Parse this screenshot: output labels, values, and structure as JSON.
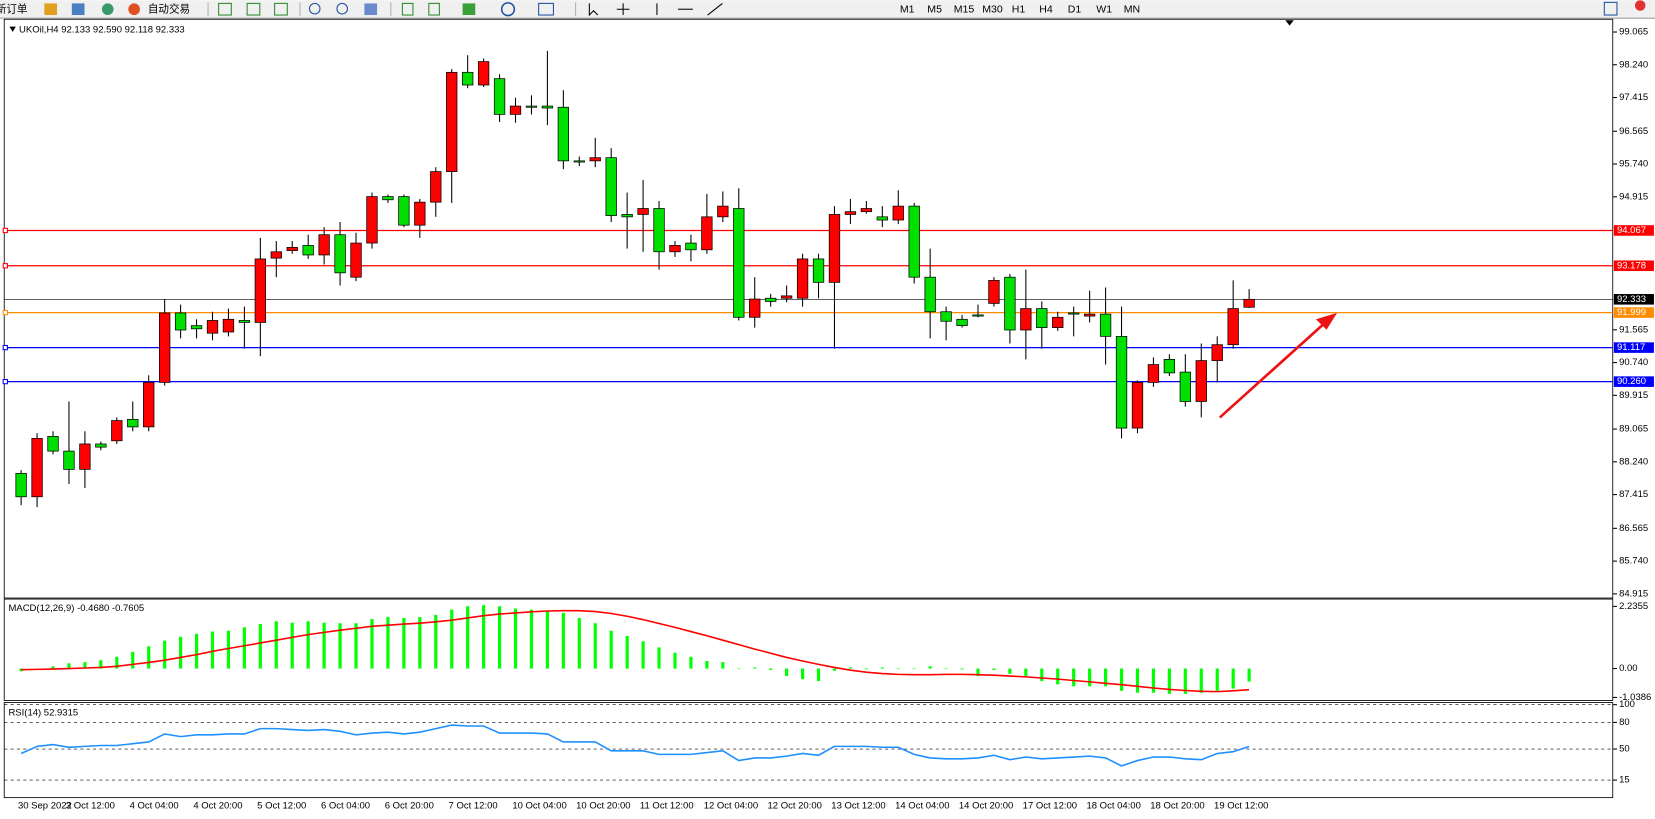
{
  "toolbar": {
    "buttons": [
      "新订单",
      "自动交易"
    ],
    "timeframes": [
      "M1",
      "M5",
      "M15",
      "M30",
      "H1",
      "H4",
      "D1",
      "W1",
      "MN"
    ]
  },
  "chart_data": [
    {
      "type": "candlestick",
      "title": "UKOil,H4  92.133 92.590 92.118 92.333",
      "categories": [
        "30 Sep 2022",
        null,
        null,
        "3 Oct 12:00",
        null,
        null,
        null,
        "4 Oct 04:00",
        null,
        null,
        null,
        "4 Oct 20:00",
        null,
        null,
        null,
        "5 Oct 12:00",
        null,
        null,
        null,
        "6 Oct 04:00",
        null,
        null,
        null,
        "6 Oct 20:00",
        null,
        null,
        null,
        "7 Oct 12:00",
        null,
        null,
        null,
        "10 Oct 04:00",
        null,
        null,
        null,
        "10 Oct 20:00",
        null,
        null,
        null,
        "11 Oct 12:00",
        null,
        null,
        null,
        "12 Oct 04:00",
        null,
        null,
        null,
        "12 Oct 20:00",
        null,
        null,
        null,
        "13 Oct 12:00",
        null,
        null,
        null,
        "14 Oct 04:00",
        null,
        null,
        null,
        "14 Oct 20:00",
        null,
        null,
        null,
        "17 Oct 12:00",
        null,
        null,
        null,
        "18 Oct 04:00",
        null,
        null,
        null,
        "18 Oct 20:00",
        null,
        null,
        null,
        "19 Oct 12:00",
        null,
        null
      ],
      "open": [
        87.95,
        87.36,
        88.88,
        88.51,
        88.05,
        88.69,
        88.77,
        89.31,
        89.12,
        90.24,
        91.99,
        91.67,
        91.48,
        91.51,
        91.8,
        91.75,
        93.37,
        93.56,
        93.69,
        93.45,
        93.96,
        92.89,
        93.75,
        94.92,
        94.92,
        94.2,
        94.78,
        95.55,
        98.05,
        97.73,
        97.89,
        96.99,
        97.2,
        97.2,
        97.17,
        95.82,
        95.82,
        95.9,
        94.47,
        94.47,
        94.62,
        93.53,
        93.75,
        93.58,
        94.41,
        94.62,
        91.88,
        92.36,
        92.36,
        92.36,
        93.35,
        92.76,
        94.47,
        94.54,
        94.41,
        94.33,
        94.68,
        92.89,
        92.02,
        91.83,
        91.94,
        92.23,
        92.89,
        91.56,
        92.1,
        91.62,
        91.99,
        91.91,
        91.96,
        91.4,
        89.09,
        90.24,
        90.82,
        90.5,
        89.76,
        90.79,
        91.19,
        92.133
      ],
      "high": [
        88.03,
        88.96,
        89.01,
        89.76,
        89.01,
        88.75,
        89.36,
        89.76,
        90.42,
        92.34,
        92.2,
        91.83,
        92.02,
        92.1,
        92.15,
        93.88,
        93.8,
        93.8,
        93.96,
        94.15,
        94.28,
        94.01,
        95.02,
        94.97,
        94.97,
        94.86,
        95.66,
        98.13,
        98.48,
        98.4,
        98.0,
        97.41,
        97.47,
        98.59,
        97.6,
        95.93,
        96.4,
        96.14,
        95.02,
        95.34,
        94.81,
        93.8,
        93.96,
        94.99,
        95.05,
        95.13,
        92.89,
        92.47,
        92.68,
        93.48,
        93.48,
        94.68,
        94.86,
        94.81,
        94.68,
        95.08,
        94.76,
        93.61,
        92.15,
        91.94,
        92.2,
        92.89,
        92.97,
        93.08,
        92.28,
        92.02,
        92.15,
        92.55,
        92.63,
        92.15,
        90.29,
        90.87,
        90.95,
        90.95,
        91.22,
        91.4,
        92.81,
        92.59
      ],
      "low": [
        87.15,
        87.1,
        88.43,
        87.68,
        87.58,
        88.53,
        88.69,
        89.01,
        89.01,
        90.16,
        91.35,
        91.35,
        91.3,
        91.4,
        91.09,
        90.9,
        92.89,
        93.48,
        93.35,
        93.21,
        92.68,
        92.79,
        93.61,
        94.76,
        94.15,
        93.88,
        94.41,
        94.76,
        97.65,
        97.68,
        96.8,
        96.78,
        96.99,
        96.72,
        95.61,
        95.69,
        95.66,
        94.28,
        93.61,
        93.53,
        93.08,
        93.4,
        93.29,
        93.48,
        94.28,
        91.8,
        91.62,
        92.15,
        92.26,
        92.15,
        92.36,
        91.09,
        94.23,
        94.49,
        94.15,
        94.23,
        92.73,
        91.35,
        91.3,
        91.62,
        91.88,
        92.15,
        91.22,
        90.82,
        91.09,
        91.54,
        91.4,
        91.75,
        90.69,
        88.83,
        88.96,
        90.13,
        90.4,
        89.63,
        89.36,
        90.24,
        91.09,
        92.118
      ],
      "close": [
        87.36,
        88.83,
        88.51,
        88.05,
        88.69,
        88.61,
        89.28,
        89.12,
        90.24,
        91.99,
        91.56,
        91.59,
        91.8,
        91.83,
        91.75,
        93.35,
        93.53,
        93.64,
        93.45,
        93.96,
        93.0,
        93.75,
        94.92,
        94.84,
        94.2,
        94.78,
        95.55,
        98.05,
        97.73,
        98.32,
        96.99,
        97.2,
        97.17,
        97.15,
        95.82,
        95.79,
        95.9,
        94.44,
        94.41,
        94.62,
        93.53,
        93.69,
        93.58,
        94.41,
        94.68,
        91.88,
        92.34,
        92.28,
        92.42,
        93.35,
        92.76,
        94.47,
        94.54,
        94.62,
        94.33,
        94.68,
        92.89,
        92.02,
        91.78,
        91.67,
        91.91,
        92.81,
        91.56,
        92.1,
        91.62,
        91.88,
        91.96,
        91.96,
        91.4,
        89.09,
        90.24,
        90.69,
        90.48,
        89.76,
        90.79,
        91.19,
        92.1,
        92.333
      ],
      "up_color": "#ff0000",
      "down_color": "#00e000",
      "ylim": [
        84.81,
        99.28
      ],
      "yticks": [
        99.065,
        {
          "value": 98.24,
          "label": "98.240"
        },
        97.415,
        96.565,
        {
          "value": 95.74,
          "label": "95.740"
        },
        94.915,
        91.565,
        {
          "value": 90.74,
          "label": "90.740"
        },
        89.915,
        89.065,
        {
          "value": 88.24,
          "label": "88.240"
        },
        87.415,
        86.565,
        {
          "value": 85.74,
          "label": "85.740"
        },
        84.915
      ],
      "hlines": [
        {
          "value": 94.067,
          "label": "94.067",
          "color": "#ff0000"
        },
        {
          "value": 93.178,
          "label": "93.178",
          "color": "#ff0000"
        },
        {
          "value": 92.333,
          "label": "92.333",
          "color": "#000000"
        },
        {
          "value": 91.999,
          "label": "91.999",
          "color": "#ff8c00"
        },
        {
          "value": 91.117,
          "label": "91.117",
          "color": "#0000ff"
        },
        {
          "value": 90.26,
          "label": "90.260",
          "color": "#0000ff"
        }
      ]
    },
    {
      "type": "macd",
      "title": "MACD(12,26,9) -0.4680 -0.7605",
      "series": [
        {
          "type": "bar",
          "color": "#00ff00",
          "values": [
            -0.1,
            -0.04,
            0.08,
            0.19,
            0.23,
            0.3,
            0.42,
            0.6,
            0.8,
            1.0,
            1.14,
            1.25,
            1.33,
            1.36,
            1.48,
            1.6,
            1.7,
            1.65,
            1.7,
            1.65,
            1.63,
            1.63,
            1.78,
            1.85,
            1.82,
            1.85,
            1.93,
            2.12,
            2.24,
            2.28,
            2.24,
            2.16,
            2.12,
            2.08,
            2.0,
            1.82,
            1.63,
            1.36,
            1.17,
            0.98,
            0.76,
            0.57,
            0.42,
            0.27,
            0.23,
            0.0,
            0.04,
            -0.05,
            -0.27,
            -0.38,
            -0.45,
            -0.08,
            0.04,
            -0.03,
            0.04,
            0.0,
            0.0,
            0.08,
            0.0,
            -0.03,
            -0.27,
            -0.05,
            -0.19,
            -0.27,
            -0.45,
            -0.57,
            -0.64,
            -0.64,
            -0.64,
            -0.8,
            -0.87,
            -0.87,
            -0.91,
            -0.91,
            -0.87,
            -0.8,
            -0.72,
            -0.468
          ]
        },
        {
          "type": "line",
          "color": "#ff0000",
          "values": [
            -0.04,
            -0.03,
            -0.02,
            0.0,
            0.02,
            0.04,
            0.08,
            0.15,
            0.22,
            0.3,
            0.4,
            0.5,
            0.62,
            0.72,
            0.82,
            0.92,
            1.02,
            1.12,
            1.22,
            1.3,
            1.38,
            1.45,
            1.52,
            1.56,
            1.6,
            1.63,
            1.68,
            1.74,
            1.82,
            1.9,
            1.96,
            2.0,
            2.04,
            2.07,
            2.08,
            2.08,
            2.05,
            1.98,
            1.88,
            1.76,
            1.62,
            1.48,
            1.33,
            1.18,
            1.02,
            0.86,
            0.7,
            0.55,
            0.4,
            0.27,
            0.15,
            0.04,
            -0.06,
            -0.13,
            -0.18,
            -0.21,
            -0.22,
            -0.22,
            -0.21,
            -0.21,
            -0.22,
            -0.24,
            -0.27,
            -0.3,
            -0.34,
            -0.38,
            -0.43,
            -0.48,
            -0.53,
            -0.58,
            -0.64,
            -0.7,
            -0.75,
            -0.79,
            -0.82,
            -0.83,
            -0.8,
            -0.7605
          ]
        }
      ],
      "ylim": [
        -1.11,
        2.46
      ],
      "yticks": [
        2.2355,
        {
          "value": 0,
          "label": "0.00"
        },
        -1.0386
      ]
    },
    {
      "type": "line",
      "title": "RSI(14) 52.9315",
      "color": "#1e90ff",
      "values": [
        45,
        53,
        55,
        52,
        53,
        54,
        54,
        56,
        58,
        67,
        64,
        66,
        66,
        67,
        67,
        73,
        73,
        72,
        71,
        72,
        70,
        66,
        68,
        69,
        67,
        69,
        73,
        77,
        76,
        76,
        68,
        68,
        68,
        67,
        58,
        58,
        58,
        48,
        48,
        48,
        44,
        44,
        44,
        46,
        48,
        37,
        40,
        40,
        42,
        45,
        43,
        53,
        53,
        53,
        52,
        52,
        44,
        40,
        39,
        39,
        40,
        43,
        38,
        41,
        39,
        40,
        41,
        42,
        40,
        31,
        37,
        41,
        41,
        39,
        38,
        45,
        47,
        52.9315
      ],
      "ylim": [
        -3.6,
        100
      ],
      "yticks": [
        100,
        80,
        50,
        15
      ],
      "grid": true
    }
  ]
}
